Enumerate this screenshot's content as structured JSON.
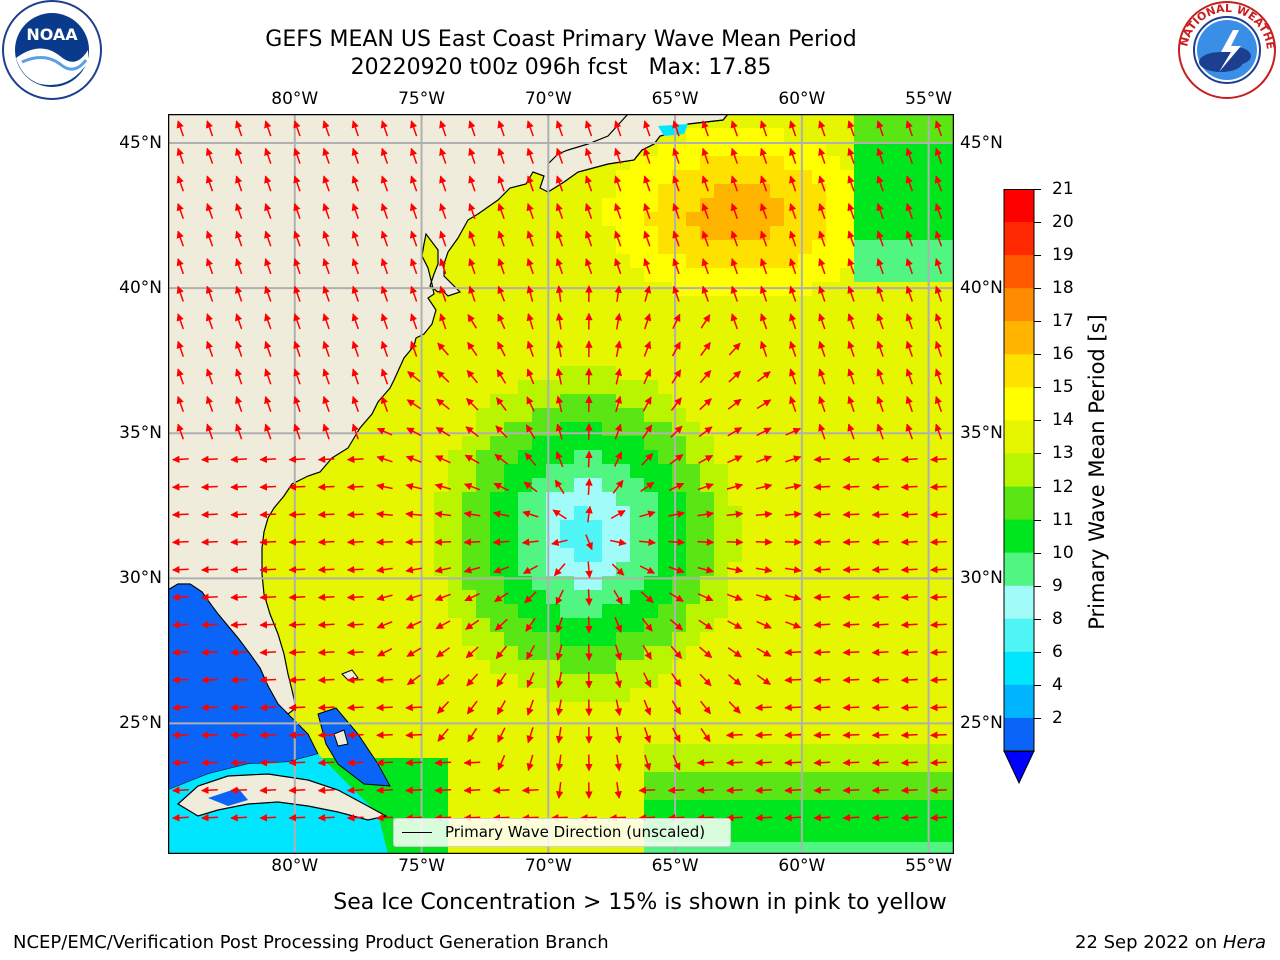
{
  "title": {
    "line1": "GEFS MEAN US East Coast Primary Wave Mean Period",
    "line2": "20220920 t00z 096h fcst   Max: 17.85"
  },
  "logos": {
    "left": "noaa-logo",
    "right": "national-weather-service-logo",
    "left_text": "NOAA",
    "right_text": "NATIONAL WEATHER SERVICE"
  },
  "chart_data": {
    "type": "heatmap",
    "variable": "Primary Wave Mean Period",
    "units": "s",
    "max_value": 17.85,
    "lon_range": [
      -85,
      -54
    ],
    "lat_range": [
      20.5,
      46
    ],
    "lon_ticks": [
      "80°W",
      "75°W",
      "70°W",
      "65°W",
      "60°W",
      "55°W"
    ],
    "lat_ticks": [
      "45°N",
      "40°N",
      "35°N",
      "30°N",
      "25°N"
    ],
    "colorbar_levels": [
      2,
      4,
      6,
      8,
      9,
      10,
      11,
      12,
      13,
      14,
      15,
      16,
      17,
      18,
      19,
      20,
      21
    ],
    "colorbar_tick_labels": [
      "21",
      "20",
      "19",
      "18",
      "17",
      "16",
      "15",
      "14",
      "13",
      "12",
      "11",
      "10",
      "9",
      "8",
      "6",
      "4",
      "2"
    ],
    "colorbar_label": "Primary Wave Mean Period [s]",
    "colorbar_colors": [
      "#0a64f8",
      "#00b4ff",
      "#00e6ff",
      "#50f5f5",
      "#a0fbf9",
      "#50f582",
      "#00e61e",
      "#5ae614",
      "#b9f500",
      "#e6f500",
      "#ffff00",
      "#ffe100",
      "#ffb400",
      "#ff8c00",
      "#ff5a00",
      "#ff2800",
      "#ff0000"
    ],
    "approx_fields": [
      {
        "feature": "gulf-of-mexico-caribbean-shelf",
        "period_s": 2
      },
      {
        "feature": "central-atlantic-low-period-core",
        "period_s": 8.5,
        "center": [
          -68.5,
          31.5
        ]
      },
      {
        "feature": "gulf-of-maine-high-period",
        "period_s": 17.5,
        "center": [
          -62.5,
          42.5
        ]
      },
      {
        "feature": "open-ocean-background",
        "period_s": 14.5
      }
    ],
    "arrow_color": "#ff0000",
    "legend": "Primary Wave Direction (unscaled)",
    "grid": true
  },
  "subtitle": "Sea Ice Concentration > 15% is shown in pink to yellow",
  "footer": {
    "left": "NCEP/EMC/Verification Post Processing Product Generation Branch",
    "right_date": "22 Sep 2022 on ",
    "right_machine": "Hera"
  }
}
